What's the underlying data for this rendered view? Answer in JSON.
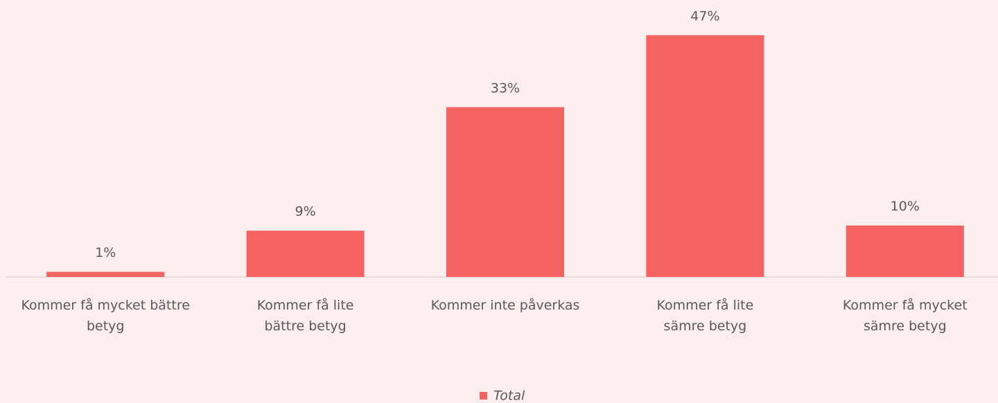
{
  "chart_data": {
    "type": "bar",
    "categories": [
      "Kommer få mycket bättre\nbetyg",
      "Kommer få lite\nbättre betyg",
      "Kommer inte påverkas",
      "Kommer få lite\nsämre betyg",
      "Kommer få mycket\nsämre betyg"
    ],
    "series": [
      {
        "name": "Total",
        "color": "#f46262",
        "values": [
          1,
          9,
          33,
          47,
          10
        ],
        "value_labels": [
          "1%",
          "9%",
          "33%",
          "47%",
          "10%"
        ]
      }
    ],
    "legend": "bottom"
  }
}
